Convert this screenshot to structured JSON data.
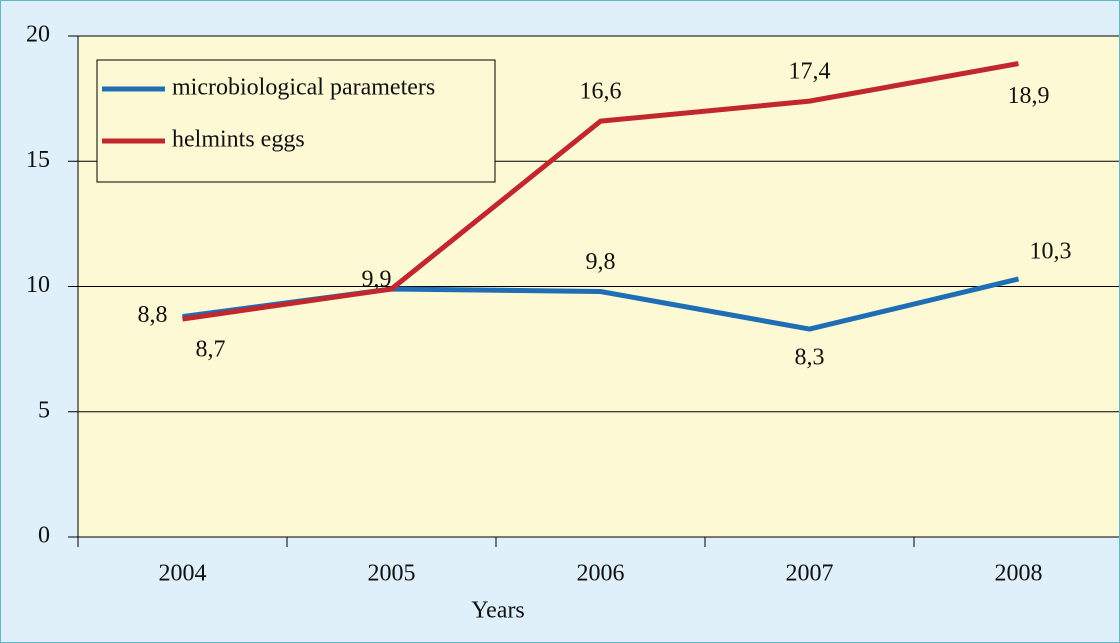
{
  "chart_data": {
    "type": "line",
    "x_label": "Years",
    "categories": [
      "2004",
      "2005",
      "2006",
      "2007",
      "2008"
    ],
    "series": [
      {
        "name": "microbiological parameters",
        "color": "#1f6db4",
        "values": [
          8.8,
          9.9,
          9.8,
          8.3,
          10.3
        ],
        "value_labels": [
          "8,8",
          "9,9",
          "9,8",
          "8,3",
          "10,3"
        ]
      },
      {
        "name": "helmints eggs",
        "color": "#c1272d",
        "values": [
          8.7,
          9.9,
          16.6,
          17.4,
          18.9
        ],
        "value_labels": [
          "8,7",
          null,
          "16,6",
          "17,4",
          "18,9"
        ]
      }
    ],
    "ylim": [
      0,
      20
    ],
    "yticks": [
      0,
      5,
      10,
      15,
      20
    ],
    "grid": true,
    "legend": "upper left"
  }
}
